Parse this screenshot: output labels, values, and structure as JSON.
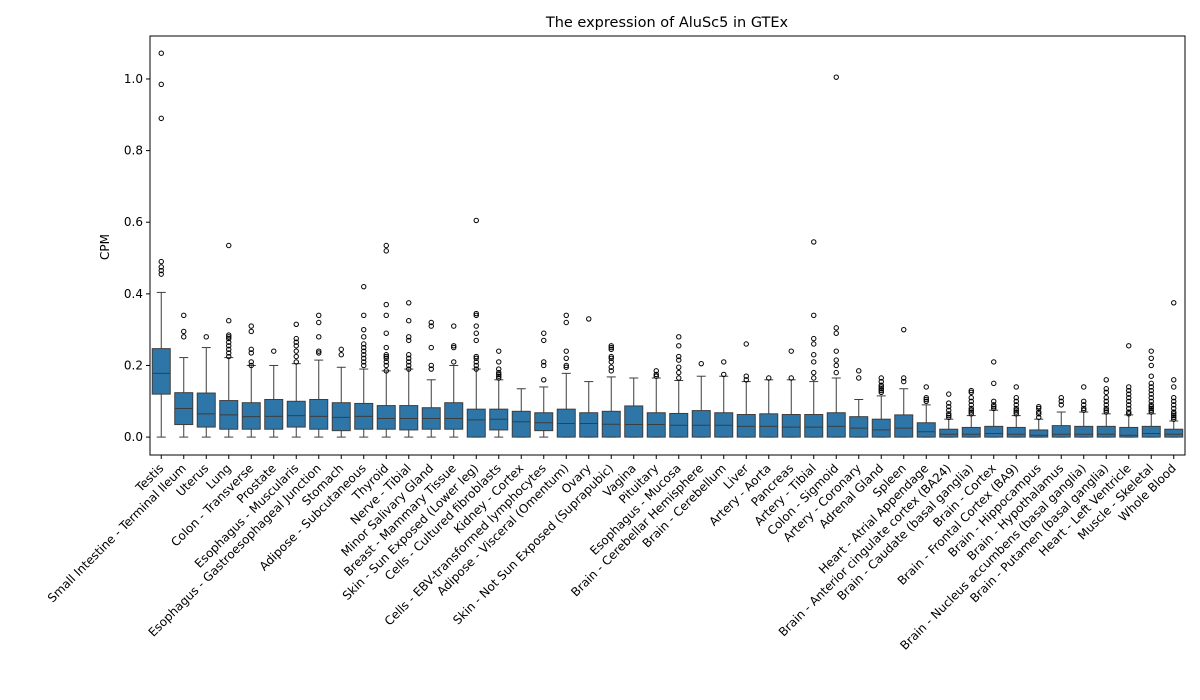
{
  "chart_data": {
    "type": "box",
    "title": "The expression of AluSc5 in GTEx",
    "xlabel": "",
    "ylabel": "CPM",
    "ylim": [
      -0.05,
      1.12
    ],
    "yticks": [
      0.0,
      0.2,
      0.4,
      0.6,
      0.8,
      1.0
    ],
    "ytick_labels": [
      "0.0",
      "0.2",
      "0.4",
      "0.6",
      "0.8",
      "1.0"
    ],
    "grid": false,
    "legend": "none",
    "box_color": "#2f76a8",
    "categories": [
      "Testis",
      "Small Intestine - Terminal Ileum",
      "Uterus",
      "Lung",
      "Colon - Transverse",
      "Prostate",
      "Esophagus - Muscularis",
      "Esophagus - Gastroesophageal Junction",
      "Stomach",
      "Adipose - Subcutaneous",
      "Thyroid",
      "Nerve - Tibial",
      "Minor Salivary Gland",
      "Breast - Mammary Tissue",
      "Skin - Sun Exposed (Lower leg)",
      "Cells - Cultured fibroblasts",
      "Kidney - Cortex",
      "Cells - EBV-transformed lymphocytes",
      "Adipose - Visceral (Omentum)",
      "Ovary",
      "Skin - Not Sun Exposed (Suprapubic)",
      "Vagina",
      "Pituitary",
      "Esophagus - Mucosa",
      "Brain - Cerebellar Hemisphere",
      "Brain - Cerebellum",
      "Liver",
      "Artery - Aorta",
      "Pancreas",
      "Artery - Tibial",
      "Colon - Sigmoid",
      "Artery - Coronary",
      "Adrenal Gland",
      "Spleen",
      "Heart - Atrial Appendage",
      "Brain - Anterior cingulate cortex (BA24)",
      "Brain - Caudate (basal ganglia)",
      "Brain - Cortex",
      "Brain - Frontal Cortex (BA9)",
      "Brain - Hippocampus",
      "Brain - Hypothalamus",
      "Brain - Nucleus accumbens (basal ganglia)",
      "Brain - Putamen (basal ganglia)",
      "Heart - Left Ventricle",
      "Muscle - Skeletal",
      "Whole Blood"
    ],
    "boxes": [
      {
        "whislo": 0.0,
        "q1": 0.12,
        "med": 0.178,
        "q3": 0.247,
        "whishi": 0.404,
        "fliers": [
          0.455,
          0.465,
          0.475,
          0.49,
          0.89,
          0.985,
          1.072
        ]
      },
      {
        "whislo": 0.0,
        "q1": 0.035,
        "med": 0.08,
        "q3": 0.124,
        "whishi": 0.222,
        "fliers": [
          0.28,
          0.295,
          0.34
        ]
      },
      {
        "whislo": 0.0,
        "q1": 0.028,
        "med": 0.065,
        "q3": 0.123,
        "whishi": 0.25,
        "fliers": [
          0.28
        ]
      },
      {
        "whislo": 0.0,
        "q1": 0.022,
        "med": 0.062,
        "q3": 0.102,
        "whishi": 0.222,
        "fliers": [
          0.225,
          0.235,
          0.245,
          0.255,
          0.265,
          0.275,
          0.28,
          0.285,
          0.325,
          0.535
        ]
      },
      {
        "whislo": 0.0,
        "q1": 0.022,
        "med": 0.057,
        "q3": 0.096,
        "whishi": 0.2,
        "fliers": [
          0.2,
          0.21,
          0.235,
          0.245,
          0.295,
          0.31
        ]
      },
      {
        "whislo": 0.0,
        "q1": 0.022,
        "med": 0.058,
        "q3": 0.105,
        "whishi": 0.2,
        "fliers": [
          0.24
        ]
      },
      {
        "whislo": 0.0,
        "q1": 0.028,
        "med": 0.06,
        "q3": 0.1,
        "whishi": 0.205,
        "fliers": [
          0.21,
          0.225,
          0.24,
          0.255,
          0.265,
          0.275,
          0.315
        ]
      },
      {
        "whislo": 0.0,
        "q1": 0.022,
        "med": 0.058,
        "q3": 0.105,
        "whishi": 0.215,
        "fliers": [
          0.235,
          0.24,
          0.28,
          0.32,
          0.34
        ]
      },
      {
        "whislo": 0.0,
        "q1": 0.018,
        "med": 0.055,
        "q3": 0.096,
        "whishi": 0.195,
        "fliers": [
          0.23,
          0.245
        ]
      },
      {
        "whislo": 0.0,
        "q1": 0.022,
        "med": 0.058,
        "q3": 0.094,
        "whishi": 0.19,
        "fliers": [
          0.2,
          0.21,
          0.22,
          0.23,
          0.24,
          0.25,
          0.26,
          0.28,
          0.3,
          0.34,
          0.42
        ]
      },
      {
        "whislo": 0.0,
        "q1": 0.022,
        "med": 0.052,
        "q3": 0.088,
        "whishi": 0.185,
        "fliers": [
          0.185,
          0.2,
          0.21,
          0.22,
          0.225,
          0.23,
          0.25,
          0.29,
          0.34,
          0.37,
          0.52,
          0.535
        ]
      },
      {
        "whislo": 0.0,
        "q1": 0.02,
        "med": 0.052,
        "q3": 0.088,
        "whishi": 0.19,
        "fliers": [
          0.19,
          0.2,
          0.21,
          0.22,
          0.23,
          0.27,
          0.28,
          0.325,
          0.375
        ]
      },
      {
        "whislo": 0.0,
        "q1": 0.022,
        "med": 0.052,
        "q3": 0.082,
        "whishi": 0.16,
        "fliers": [
          0.19,
          0.2,
          0.25,
          0.31,
          0.32
        ]
      },
      {
        "whislo": 0.0,
        "q1": 0.022,
        "med": 0.052,
        "q3": 0.096,
        "whishi": 0.2,
        "fliers": [
          0.21,
          0.25,
          0.255,
          0.31
        ]
      },
      {
        "whislo": 0.0,
        "q1": 0.0,
        "med": 0.048,
        "q3": 0.078,
        "whishi": 0.19,
        "fliers": [
          0.19,
          0.2,
          0.21,
          0.22,
          0.225,
          0.27,
          0.29,
          0.31,
          0.34,
          0.345,
          0.605
        ]
      },
      {
        "whislo": 0.0,
        "q1": 0.02,
        "med": 0.05,
        "q3": 0.078,
        "whishi": 0.16,
        "fliers": [
          0.165,
          0.17,
          0.175,
          0.18,
          0.19,
          0.21,
          0.24
        ]
      },
      {
        "whislo": 0.0,
        "q1": 0.0,
        "med": 0.043,
        "q3": 0.072,
        "whishi": 0.135,
        "fliers": []
      },
      {
        "whislo": 0.0,
        "q1": 0.018,
        "med": 0.04,
        "q3": 0.068,
        "whishi": 0.14,
        "fliers": [
          0.16,
          0.2,
          0.21,
          0.27,
          0.29
        ]
      },
      {
        "whislo": 0.0,
        "q1": 0.0,
        "med": 0.038,
        "q3": 0.078,
        "whishi": 0.178,
        "fliers": [
          0.195,
          0.2,
          0.22,
          0.24,
          0.32,
          0.34
        ]
      },
      {
        "whislo": 0.0,
        "q1": 0.0,
        "med": 0.038,
        "q3": 0.068,
        "whishi": 0.155,
        "fliers": [
          0.33
        ]
      },
      {
        "whislo": 0.0,
        "q1": 0.0,
        "med": 0.036,
        "q3": 0.072,
        "whishi": 0.168,
        "fliers": [
          0.185,
          0.195,
          0.21,
          0.22,
          0.225,
          0.245,
          0.25,
          0.255
        ]
      },
      {
        "whislo": 0.0,
        "q1": 0.0,
        "med": 0.035,
        "q3": 0.087,
        "whishi": 0.165,
        "fliers": []
      },
      {
        "whislo": 0.0,
        "q1": 0.0,
        "med": 0.035,
        "q3": 0.068,
        "whishi": 0.165,
        "fliers": [
          0.17,
          0.175,
          0.185
        ]
      },
      {
        "whislo": 0.0,
        "q1": 0.0,
        "med": 0.033,
        "q3": 0.066,
        "whishi": 0.158,
        "fliers": [
          0.165,
          0.18,
          0.195,
          0.215,
          0.225,
          0.255,
          0.28
        ]
      },
      {
        "whislo": 0.0,
        "q1": 0.0,
        "med": 0.033,
        "q3": 0.074,
        "whishi": 0.17,
        "fliers": [
          0.205
        ]
      },
      {
        "whislo": 0.0,
        "q1": 0.0,
        "med": 0.033,
        "q3": 0.068,
        "whishi": 0.17,
        "fliers": [
          0.175,
          0.21
        ]
      },
      {
        "whislo": 0.0,
        "q1": 0.0,
        "med": 0.03,
        "q3": 0.063,
        "whishi": 0.155,
        "fliers": [
          0.16,
          0.17,
          0.26
        ]
      },
      {
        "whislo": 0.0,
        "q1": 0.0,
        "med": 0.03,
        "q3": 0.065,
        "whishi": 0.16,
        "fliers": [
          0.165
        ]
      },
      {
        "whislo": 0.0,
        "q1": 0.0,
        "med": 0.028,
        "q3": 0.063,
        "whishi": 0.16,
        "fliers": [
          0.165,
          0.24
        ]
      },
      {
        "whislo": 0.0,
        "q1": 0.0,
        "med": 0.028,
        "q3": 0.063,
        "whishi": 0.155,
        "fliers": [
          0.165,
          0.18,
          0.21,
          0.23,
          0.26,
          0.275,
          0.34,
          0.545
        ]
      },
      {
        "whislo": 0.0,
        "q1": 0.0,
        "med": 0.03,
        "q3": 0.068,
        "whishi": 0.165,
        "fliers": [
          0.18,
          0.2,
          0.215,
          0.24,
          0.29,
          0.305,
          1.005
        ]
      },
      {
        "whislo": 0.0,
        "q1": 0.0,
        "med": 0.025,
        "q3": 0.057,
        "whishi": 0.105,
        "fliers": [
          0.165,
          0.185
        ]
      },
      {
        "whislo": 0.0,
        "q1": 0.0,
        "med": 0.02,
        "q3": 0.05,
        "whishi": 0.115,
        "fliers": [
          0.125,
          0.13,
          0.135,
          0.14,
          0.145,
          0.155,
          0.165
        ]
      },
      {
        "whislo": 0.0,
        "q1": 0.0,
        "med": 0.025,
        "q3": 0.062,
        "whishi": 0.135,
        "fliers": [
          0.155,
          0.165,
          0.3
        ]
      },
      {
        "whislo": 0.0,
        "q1": 0.0,
        "med": 0.015,
        "q3": 0.04,
        "whishi": 0.09,
        "fliers": [
          0.1,
          0.105,
          0.11,
          0.14
        ]
      },
      {
        "whislo": 0.0,
        "q1": 0.0,
        "med": 0.008,
        "q3": 0.022,
        "whishi": 0.05,
        "fliers": [
          0.055,
          0.06,
          0.065,
          0.075,
          0.085,
          0.095,
          0.12
        ]
      },
      {
        "whislo": 0.0,
        "q1": 0.0,
        "med": 0.008,
        "q3": 0.027,
        "whishi": 0.06,
        "fliers": [
          0.065,
          0.07,
          0.075,
          0.08,
          0.09,
          0.1,
          0.11,
          0.125,
          0.13
        ]
      },
      {
        "whislo": 0.0,
        "q1": 0.0,
        "med": 0.01,
        "q3": 0.03,
        "whishi": 0.075,
        "fliers": [
          0.08,
          0.085,
          0.09,
          0.1,
          0.15,
          0.21
        ]
      },
      {
        "whislo": 0.0,
        "q1": 0.0,
        "med": 0.008,
        "q3": 0.027,
        "whishi": 0.06,
        "fliers": [
          0.065,
          0.07,
          0.075,
          0.08,
          0.09,
          0.1,
          0.11,
          0.14
        ]
      },
      {
        "whislo": 0.0,
        "q1": 0.0,
        "med": 0.005,
        "q3": 0.02,
        "whishi": 0.05,
        "fliers": [
          0.055,
          0.065,
          0.07,
          0.08,
          0.085
        ]
      },
      {
        "whislo": 0.0,
        "q1": 0.0,
        "med": 0.008,
        "q3": 0.032,
        "whishi": 0.07,
        "fliers": [
          0.09,
          0.1,
          0.11
        ]
      },
      {
        "whislo": 0.0,
        "q1": 0.0,
        "med": 0.008,
        "q3": 0.03,
        "whishi": 0.07,
        "fliers": [
          0.075,
          0.08,
          0.09,
          0.1,
          0.14
        ]
      },
      {
        "whislo": 0.0,
        "q1": 0.0,
        "med": 0.008,
        "q3": 0.03,
        "whishi": 0.065,
        "fliers": [
          0.07,
          0.075,
          0.08,
          0.09,
          0.1,
          0.11,
          0.125,
          0.135,
          0.16
        ]
      },
      {
        "whislo": 0.0,
        "q1": 0.0,
        "med": 0.005,
        "q3": 0.027,
        "whishi": 0.062,
        "fliers": [
          0.065,
          0.07,
          0.08,
          0.09,
          0.1,
          0.11,
          0.12,
          0.13,
          0.14,
          0.255
        ]
      },
      {
        "whislo": 0.0,
        "q1": 0.0,
        "med": 0.01,
        "q3": 0.03,
        "whishi": 0.065,
        "fliers": [
          0.07,
          0.075,
          0.08,
          0.085,
          0.09,
          0.1,
          0.11,
          0.12,
          0.13,
          0.14,
          0.15,
          0.17,
          0.2,
          0.22,
          0.24
        ]
      },
      {
        "whislo": 0.0,
        "q1": 0.0,
        "med": 0.008,
        "q3": 0.022,
        "whishi": 0.045,
        "fliers": [
          0.05,
          0.055,
          0.06,
          0.065,
          0.07,
          0.08,
          0.09,
          0.1,
          0.11,
          0.14,
          0.16,
          0.375
        ]
      }
    ]
  }
}
